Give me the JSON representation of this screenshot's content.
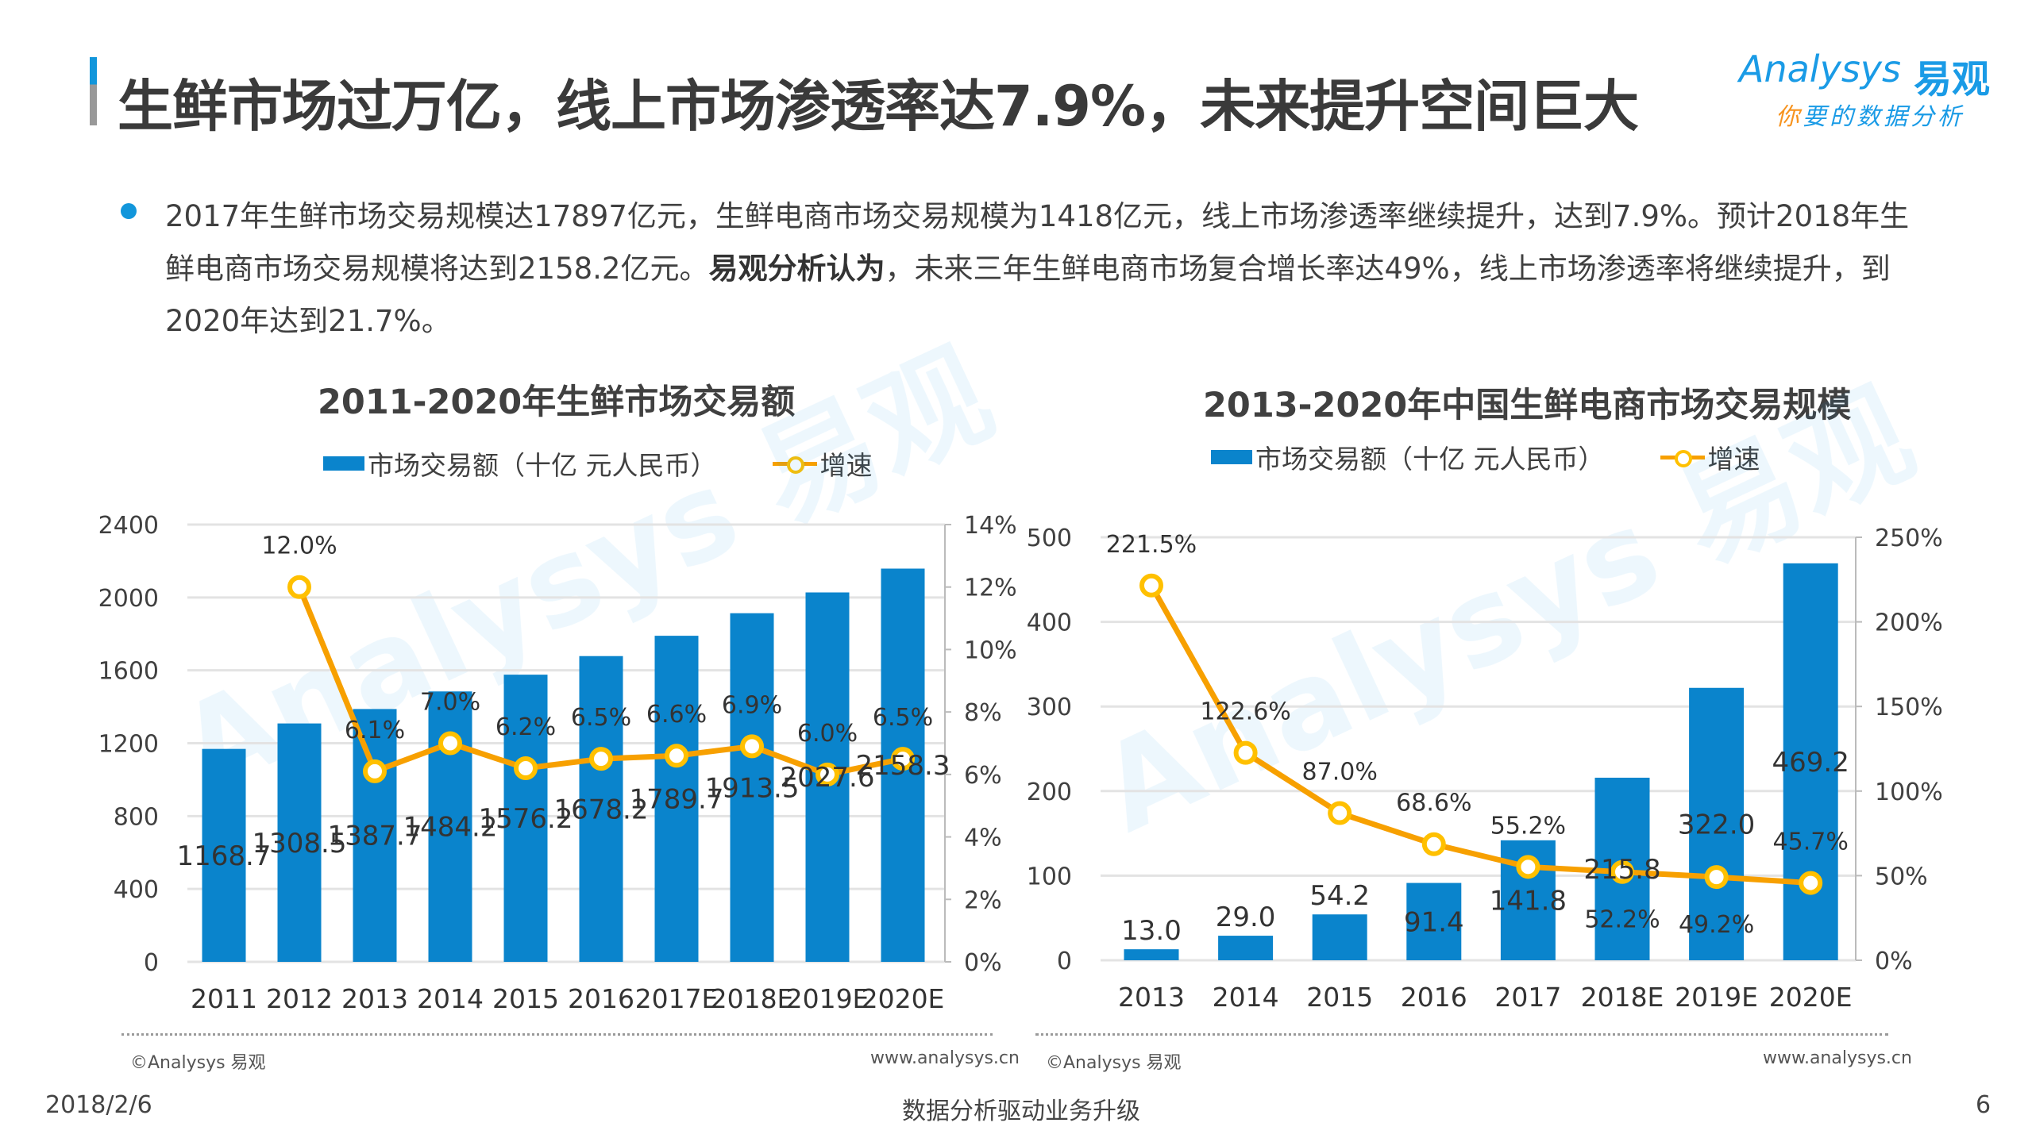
{
  "header": {
    "title": "生鲜市场过万亿，线上市场渗透率达7.9%，未来提升空间巨大",
    "logo_en": "Analysys",
    "logo_cn": "易观",
    "logo_slogan_first": "你",
    "logo_slogan_rest": "要的数据分析"
  },
  "summary": {
    "part1": "2017年生鲜市场交易规模达17897亿元，生鲜电商市场交易规模为1418亿元，线上市场渗透率继续提升，达到7.9%。预计2018年生鲜电商市场交易规模将达到2158.2亿元。",
    "bold": "易观分析认为",
    "part2": "，未来三年生鲜电商市场复合增长率达49%，线上市场渗透率将继续提升，到2020年达到21.7%。"
  },
  "colors": {
    "bar": "#0a84cc",
    "line": "#f7a000",
    "marker": "#ffc000",
    "accent": "#1296db"
  },
  "chart_data": [
    {
      "type": "bar+line",
      "title": "2011-2020年生鲜市场交易额",
      "categories": [
        "2011",
        "2012",
        "2013",
        "2014",
        "2015",
        "2016",
        "2017E",
        "2018E",
        "2019E",
        "2020E"
      ],
      "series": [
        {
          "name": "市场交易额（十亿 元人民币）",
          "type": "bar",
          "axis": "left",
          "values": [
            1168.7,
            1308.5,
            1387.7,
            1484.2,
            1576.2,
            1678.2,
            1789.7,
            1913.5,
            2027.6,
            2158.3
          ],
          "labels": [
            "1168.7",
            "1308.5",
            "1387.7",
            "1484.2",
            "1576.2",
            "1678.2",
            "1789.7",
            "1913.5",
            "2027.6",
            "2158.3"
          ]
        },
        {
          "name": "增速",
          "type": "line",
          "axis": "right",
          "values": [
            null,
            12.0,
            6.1,
            7.0,
            6.2,
            6.5,
            6.6,
            6.9,
            6.0,
            6.5
          ],
          "labels": [
            "",
            "12.0%",
            "6.1%",
            "7.0%",
            "6.2%",
            "6.5%",
            "6.6%",
            "6.9%",
            "6.0%",
            "6.5%"
          ]
        }
      ],
      "ylim": [
        0,
        2400
      ],
      "yticks": [
        "0",
        "400",
        "800",
        "1200",
        "1600",
        "2000",
        "2400"
      ],
      "y2lim": [
        0,
        14
      ],
      "y2ticks": [
        "0%",
        "2%",
        "4%",
        "6%",
        "8%",
        "10%",
        "12%",
        "14%"
      ],
      "grid": true,
      "legend": "top",
      "source_left": "©Analysys 易观",
      "source_right": "www.analysys.cn"
    },
    {
      "type": "bar+line",
      "title": "2013-2020年中国生鲜电商市场交易规模",
      "categories": [
        "2013",
        "2014",
        "2015",
        "2016",
        "2017",
        "2018E",
        "2019E",
        "2020E"
      ],
      "series": [
        {
          "name": "市场交易额（十亿 元人民币）",
          "type": "bar",
          "axis": "left",
          "values": [
            13.0,
            29.0,
            54.2,
            91.4,
            141.8,
            215.8,
            322.0,
            469.2
          ],
          "labels": [
            "13.0",
            "29.0",
            "54.2",
            "91.4",
            "141.8",
            "215.8",
            "322.0",
            "469.2"
          ]
        },
        {
          "name": "增速",
          "type": "line",
          "axis": "right",
          "values": [
            221.5,
            122.6,
            87.0,
            68.6,
            55.2,
            52.2,
            49.2,
            45.7
          ],
          "labels": [
            "221.5%",
            "122.6%",
            "87.0%",
            "68.6%",
            "55.2%",
            "52.2%",
            "49.2%",
            "45.7%"
          ]
        }
      ],
      "ylim": [
        0,
        500
      ],
      "yticks": [
        "0",
        "100",
        "200",
        "300",
        "400",
        "500"
      ],
      "y2lim": [
        0,
        250
      ],
      "y2ticks": [
        "0%",
        "50%",
        "100%",
        "150%",
        "200%",
        "250%"
      ],
      "grid": true,
      "legend": "top",
      "source_left": "©Analysys 易观",
      "source_right": "www.analysys.cn"
    }
  ],
  "footer": {
    "date": "2018/2/6",
    "slogan": "数据分析驱动业务升级",
    "page": "6"
  }
}
